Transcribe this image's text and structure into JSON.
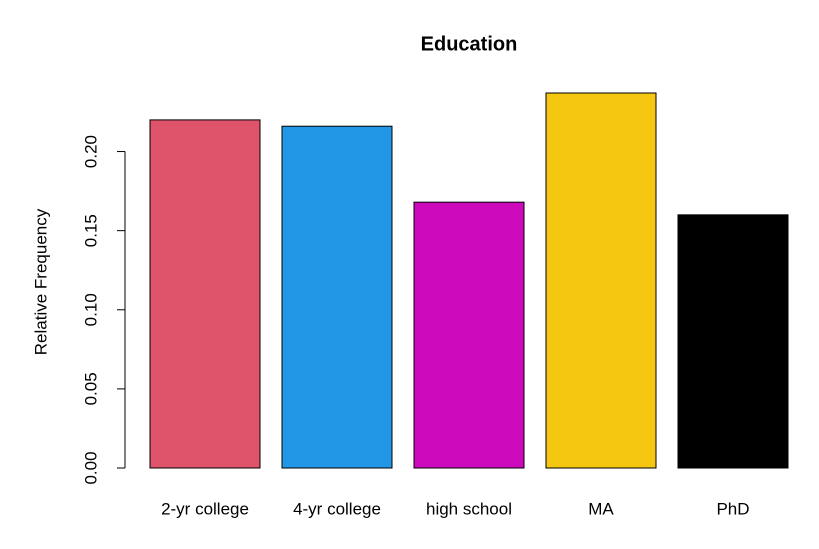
{
  "chart_data": {
    "type": "bar",
    "title": "Education",
    "y_label": "Relative Frequency",
    "categories": [
      "2-yr college",
      "4-yr college",
      "high school",
      "MA",
      "PhD"
    ],
    "values": [
      0.22,
      0.216,
      0.168,
      0.237,
      0.16
    ],
    "colors": [
      "#DF536B",
      "#2297E6",
      "#CD0BBC",
      "#F5C710",
      "#000000"
    ],
    "ylim": [
      0,
      0.237
    ],
    "yticks": [
      {
        "value": 0,
        "label": "0.00"
      },
      0.05,
      {
        "value": 0.1,
        "label": "0.10"
      },
      0.15,
      {
        "value": 0.2,
        "label": "0.20"
      }
    ]
  }
}
